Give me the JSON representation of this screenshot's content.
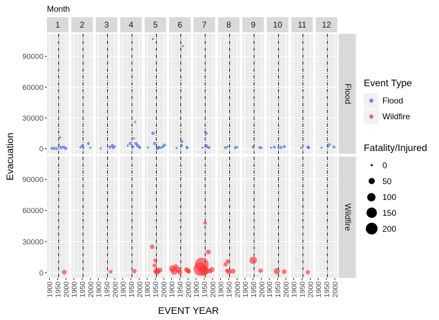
{
  "chart_data": {
    "type": "scatter",
    "facet_col_title": "Month",
    "months": [
      "1",
      "2",
      "3",
      "4",
      "5",
      "6",
      "7",
      "8",
      "9",
      "10",
      "11",
      "12"
    ],
    "row_panels": [
      "Flood",
      "Wildfire"
    ],
    "xlabel": "EVENT YEAR",
    "ylabel": "Evacuation",
    "x_ticks": [
      1900,
      1950,
      2000
    ],
    "x_range": [
      1885,
      2015
    ],
    "y_ticks": [
      0,
      30000,
      60000,
      90000
    ],
    "y_tick_labels": [
      "0",
      "30000",
      "60000",
      "90000"
    ],
    "y_range": [
      -5000,
      112000
    ],
    "reference_year": 1955,
    "legend_color": {
      "title": "Event Type",
      "items": [
        {
          "label": "Flood",
          "color": "#4169e1"
        },
        {
          "label": "Wildfire",
          "color": "#ff3333"
        }
      ]
    },
    "legend_size": {
      "title": "Fatality/Injured",
      "items": [
        {
          "label": "0",
          "value": 0
        },
        {
          "label": "50",
          "value": 50
        },
        {
          "label": "100",
          "value": 100
        },
        {
          "label": "150",
          "value": 150
        },
        {
          "label": "200",
          "value": 200
        }
      ]
    },
    "series": [
      {
        "name": "Flood",
        "color": "#4169e1",
        "points": [
          {
            "month": 1,
            "x": 1912,
            "y": 200,
            "s": 0
          },
          {
            "month": 1,
            "x": 1925,
            "y": 300,
            "s": 2
          },
          {
            "month": 1,
            "x": 1942,
            "y": 0,
            "s": 1
          },
          {
            "month": 1,
            "x": 1958,
            "y": 4000,
            "s": 0
          },
          {
            "month": 1,
            "x": 1965,
            "y": 11000,
            "s": 0
          },
          {
            "month": 1,
            "x": 1970,
            "y": 1000,
            "s": 2
          },
          {
            "month": 1,
            "x": 1985,
            "y": 1500,
            "s": 1
          },
          {
            "month": 1,
            "x": 1998,
            "y": 300,
            "s": 2
          },
          {
            "month": 2,
            "x": 1940,
            "y": 1200,
            "s": 0
          },
          {
            "month": 2,
            "x": 1950,
            "y": 2500,
            "s": 1
          },
          {
            "month": 2,
            "x": 1958,
            "y": 1000,
            "s": 0
          },
          {
            "month": 2,
            "x": 1988,
            "y": 5000,
            "s": 1
          },
          {
            "month": 2,
            "x": 2000,
            "y": 800,
            "s": 0
          },
          {
            "month": 3,
            "x": 1915,
            "y": 300,
            "s": 0
          },
          {
            "month": 3,
            "x": 1970,
            "y": 1500,
            "s": 1
          },
          {
            "month": 3,
            "x": 1985,
            "y": 3000,
            "s": 2
          },
          {
            "month": 3,
            "x": 1990,
            "y": 1000,
            "s": 1
          },
          {
            "month": 3,
            "x": 2000,
            "y": 2000,
            "s": 0
          },
          {
            "month": 4,
            "x": 1930,
            "y": 3000,
            "s": 0
          },
          {
            "month": 4,
            "x": 1945,
            "y": 5000,
            "s": 1
          },
          {
            "month": 4,
            "x": 1960,
            "y": 1500,
            "s": 2
          },
          {
            "month": 4,
            "x": 1968,
            "y": 10000,
            "s": 0
          },
          {
            "month": 4,
            "x": 1975,
            "y": 26000,
            "s": 0
          },
          {
            "month": 4,
            "x": 1980,
            "y": 5000,
            "s": 2
          },
          {
            "month": 4,
            "x": 1990,
            "y": 3000,
            "s": 2
          },
          {
            "month": 4,
            "x": 2000,
            "y": 1500,
            "s": 1
          },
          {
            "month": 4,
            "x": 2005,
            "y": 800,
            "s": 0
          },
          {
            "month": 5,
            "x": 1905,
            "y": 1000,
            "s": 0
          },
          {
            "month": 5,
            "x": 1935,
            "y": 15000,
            "s": 2
          },
          {
            "month": 5,
            "x": 1935,
            "y": 107000,
            "s": 0
          },
          {
            "month": 5,
            "x": 1945,
            "y": 5000,
            "s": 1
          },
          {
            "month": 5,
            "x": 1960,
            "y": 0,
            "s": 1
          },
          {
            "month": 5,
            "x": 1968,
            "y": 1200,
            "s": 2
          },
          {
            "month": 5,
            "x": 1975,
            "y": 1000,
            "s": 0
          },
          {
            "month": 5,
            "x": 1985,
            "y": 800,
            "s": 0
          },
          {
            "month": 5,
            "x": 1995,
            "y": 2000,
            "s": 1
          },
          {
            "month": 5,
            "x": 2005,
            "y": 3500,
            "s": 1
          },
          {
            "month": 6,
            "x": 1930,
            "y": 500,
            "s": 0
          },
          {
            "month": 6,
            "x": 1960,
            "y": 3000,
            "s": 1
          },
          {
            "month": 6,
            "x": 1962,
            "y": 7000,
            "s": 1
          },
          {
            "month": 6,
            "x": 1968,
            "y": 100000,
            "s": 0
          },
          {
            "month": 6,
            "x": 1990,
            "y": 1500,
            "s": 0
          },
          {
            "month": 6,
            "x": 1995,
            "y": 800,
            "s": 1
          },
          {
            "month": 7,
            "x": 1940,
            "y": 1000,
            "s": 0
          },
          {
            "month": 7,
            "x": 1960,
            "y": 15000,
            "s": 2
          },
          {
            "month": 7,
            "x": 1963,
            "y": 3000,
            "s": 1
          },
          {
            "month": 7,
            "x": 1968,
            "y": 1500,
            "s": 0
          },
          {
            "month": 7,
            "x": 1978,
            "y": 1000,
            "s": 1
          },
          {
            "month": 8,
            "x": 1930,
            "y": 1000,
            "s": 1
          },
          {
            "month": 8,
            "x": 1945,
            "y": 2000,
            "s": 0
          },
          {
            "month": 8,
            "x": 1990,
            "y": 1000,
            "s": 1
          },
          {
            "month": 8,
            "x": 2000,
            "y": 1500,
            "s": 0
          },
          {
            "month": 9,
            "x": 1950,
            "y": 1500,
            "s": 1
          },
          {
            "month": 9,
            "x": 1990,
            "y": 1000,
            "s": 1
          },
          {
            "month": 9,
            "x": 2000,
            "y": 800,
            "s": 0
          },
          {
            "month": 10,
            "x": 1910,
            "y": 1000,
            "s": 0
          },
          {
            "month": 10,
            "x": 1930,
            "y": 1500,
            "s": 1
          },
          {
            "month": 10,
            "x": 1955,
            "y": 1000,
            "s": 0
          },
          {
            "month": 10,
            "x": 1970,
            "y": 1200,
            "s": 1
          },
          {
            "month": 10,
            "x": 1990,
            "y": 2000,
            "s": 1
          },
          {
            "month": 11,
            "x": 1945,
            "y": 800,
            "s": 0
          },
          {
            "month": 11,
            "x": 1985,
            "y": 1500,
            "s": 1
          },
          {
            "month": 11,
            "x": 1990,
            "y": 1000,
            "s": 1
          },
          {
            "month": 12,
            "x": 1920,
            "y": 1000,
            "s": 0
          },
          {
            "month": 12,
            "x": 1960,
            "y": 2000,
            "s": 0
          },
          {
            "month": 12,
            "x": 1968,
            "y": 4000,
            "s": 1
          },
          {
            "month": 12,
            "x": 1995,
            "y": 1500,
            "s": 1
          }
        ]
      },
      {
        "name": "Wildfire",
        "color": "#ff3333",
        "points": [
          {
            "month": 1,
            "x": 1990,
            "y": 500,
            "s": 10
          },
          {
            "month": 3,
            "x": 1975,
            "y": 1000,
            "s": 3
          },
          {
            "month": 4,
            "x": 1970,
            "y": 1500,
            "s": 8
          },
          {
            "month": 5,
            "x": 1930,
            "y": 25000,
            "s": 8
          },
          {
            "month": 5,
            "x": 1945,
            "y": 7000,
            "s": 5
          },
          {
            "month": 5,
            "x": 1950,
            "y": 12000,
            "s": 5
          },
          {
            "month": 5,
            "x": 1955,
            "y": 1500,
            "s": 18
          },
          {
            "month": 5,
            "x": 1960,
            "y": 1000,
            "s": 20
          },
          {
            "month": 5,
            "x": 1975,
            "y": 2500,
            "s": 15
          },
          {
            "month": 6,
            "x": 1905,
            "y": 4000,
            "s": 30
          },
          {
            "month": 6,
            "x": 1915,
            "y": 1500,
            "s": 35
          },
          {
            "month": 6,
            "x": 1925,
            "y": 6000,
            "s": 8
          },
          {
            "month": 6,
            "x": 1940,
            "y": 3000,
            "s": 22
          },
          {
            "month": 6,
            "x": 1950,
            "y": 500,
            "s": 10
          },
          {
            "month": 6,
            "x": 1990,
            "y": 3000,
            "s": 10
          },
          {
            "month": 6,
            "x": 1998,
            "y": 2000,
            "s": 12
          },
          {
            "month": 6,
            "x": 2005,
            "y": 1000,
            "s": 5
          },
          {
            "month": 7,
            "x": 1925,
            "y": 3500,
            "s": 180
          },
          {
            "month": 7,
            "x": 1935,
            "y": 8000,
            "s": 200
          },
          {
            "month": 7,
            "x": 1945,
            "y": 2000,
            "s": 90
          },
          {
            "month": 7,
            "x": 1955,
            "y": 48000,
            "s": 3
          },
          {
            "month": 7,
            "x": 1962,
            "y": 2000,
            "s": 25
          },
          {
            "month": 7,
            "x": 1975,
            "y": 20000,
            "s": 10
          },
          {
            "month": 7,
            "x": 1985,
            "y": 1500,
            "s": 8
          },
          {
            "month": 7,
            "x": 1995,
            "y": 3000,
            "s": 15
          },
          {
            "month": 8,
            "x": 1930,
            "y": 8000,
            "s": 6
          },
          {
            "month": 8,
            "x": 1940,
            "y": 2000,
            "s": 5
          },
          {
            "month": 8,
            "x": 1945,
            "y": 11000,
            "s": 8
          },
          {
            "month": 8,
            "x": 1950,
            "y": 1000,
            "s": 15
          },
          {
            "month": 8,
            "x": 1975,
            "y": 1500,
            "s": 12
          },
          {
            "month": 9,
            "x": 1950,
            "y": 12000,
            "s": 40
          },
          {
            "month": 9,
            "x": 1995,
            "y": 2000,
            "s": 8
          },
          {
            "month": 10,
            "x": 1945,
            "y": 1500,
            "s": 25
          },
          {
            "month": 10,
            "x": 1990,
            "y": 1000,
            "s": 10
          },
          {
            "month": 11,
            "x": 1985,
            "y": 500,
            "s": 6
          }
        ]
      }
    ]
  }
}
